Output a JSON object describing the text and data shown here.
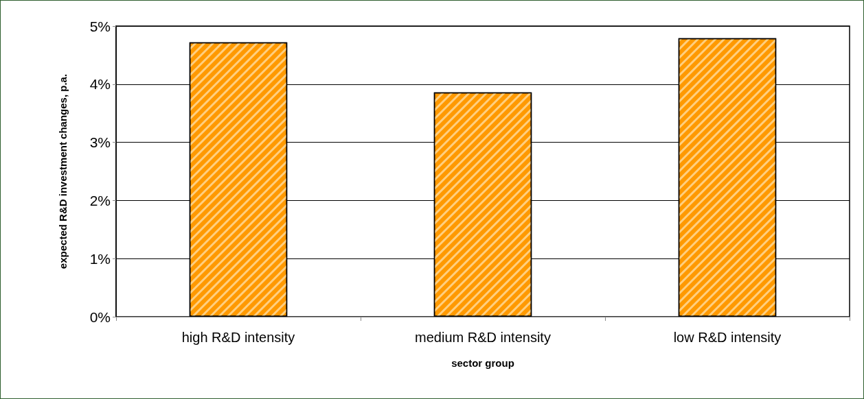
{
  "chart_data": {
    "type": "bar",
    "xlabel": "sector group",
    "ylabel": "expected R&D investment changes, p.a.",
    "categories": [
      "high R&D intensity",
      "medium R&D intensity",
      "low R&D intensity"
    ],
    "values": [
      4.72,
      3.86,
      4.79
    ],
    "color": "#ff9900",
    "ylim": [
      0,
      5
    ],
    "yticks": [
      {
        "value": 0,
        "label": "0%"
      },
      {
        "value": 1,
        "label": "1%"
      },
      {
        "value": 2,
        "label": "2%"
      },
      {
        "value": 3,
        "label": "3%"
      },
      {
        "value": 4,
        "label": "4%"
      },
      {
        "value": 5,
        "label": "5%"
      }
    ],
    "grid": "y"
  }
}
